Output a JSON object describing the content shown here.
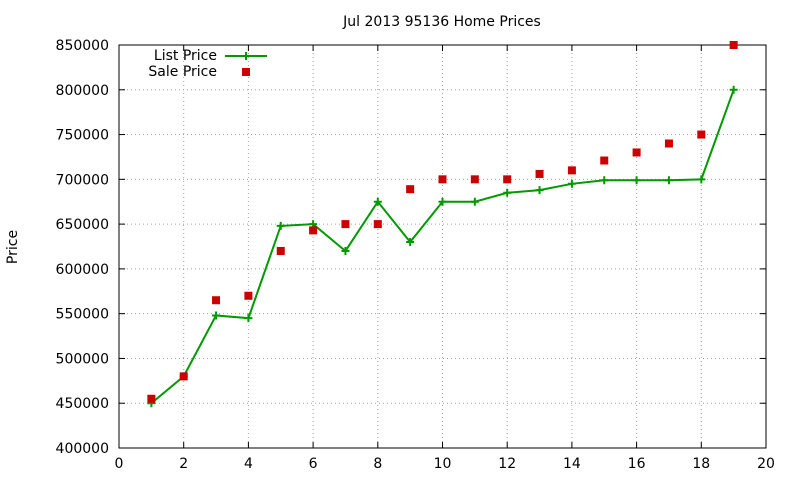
{
  "chart_data": {
    "type": "line",
    "title": "Jul 2013 95136 Home Prices",
    "xlabel": "",
    "ylabel": "Price",
    "xlim": [
      0,
      20
    ],
    "ylim": [
      400000,
      850000
    ],
    "xticks": [
      0,
      2,
      4,
      6,
      8,
      10,
      12,
      14,
      16,
      18,
      20
    ],
    "yticks": [
      400000,
      450000,
      500000,
      550000,
      600000,
      650000,
      700000,
      750000,
      800000,
      850000
    ],
    "grid": true,
    "legend_position": "top-left",
    "series": [
      {
        "name": "List Price",
        "style": "line-plus",
        "color": "#009900",
        "x": [
          1,
          2,
          3,
          4,
          5,
          6,
          7,
          8,
          9,
          10,
          11,
          12,
          13,
          14,
          15,
          16,
          17,
          18,
          19
        ],
        "y": [
          450000,
          480000,
          548000,
          545000,
          648000,
          650000,
          620000,
          675000,
          630000,
          675000,
          675000,
          685000,
          688000,
          695000,
          699000,
          699000,
          699000,
          700000,
          800000
        ]
      },
      {
        "name": "Sale Price",
        "style": "square",
        "color": "#cc0000",
        "x": [
          1,
          2,
          3,
          4,
          5,
          6,
          7,
          8,
          9,
          10,
          11,
          12,
          13,
          14,
          15,
          16,
          17,
          18,
          19
        ],
        "y": [
          455000,
          480000,
          565000,
          570000,
          620000,
          643000,
          650000,
          650000,
          689000,
          700000,
          700000,
          700000,
          706000,
          710000,
          721000,
          730000,
          740000,
          750000,
          850000
        ]
      }
    ]
  }
}
